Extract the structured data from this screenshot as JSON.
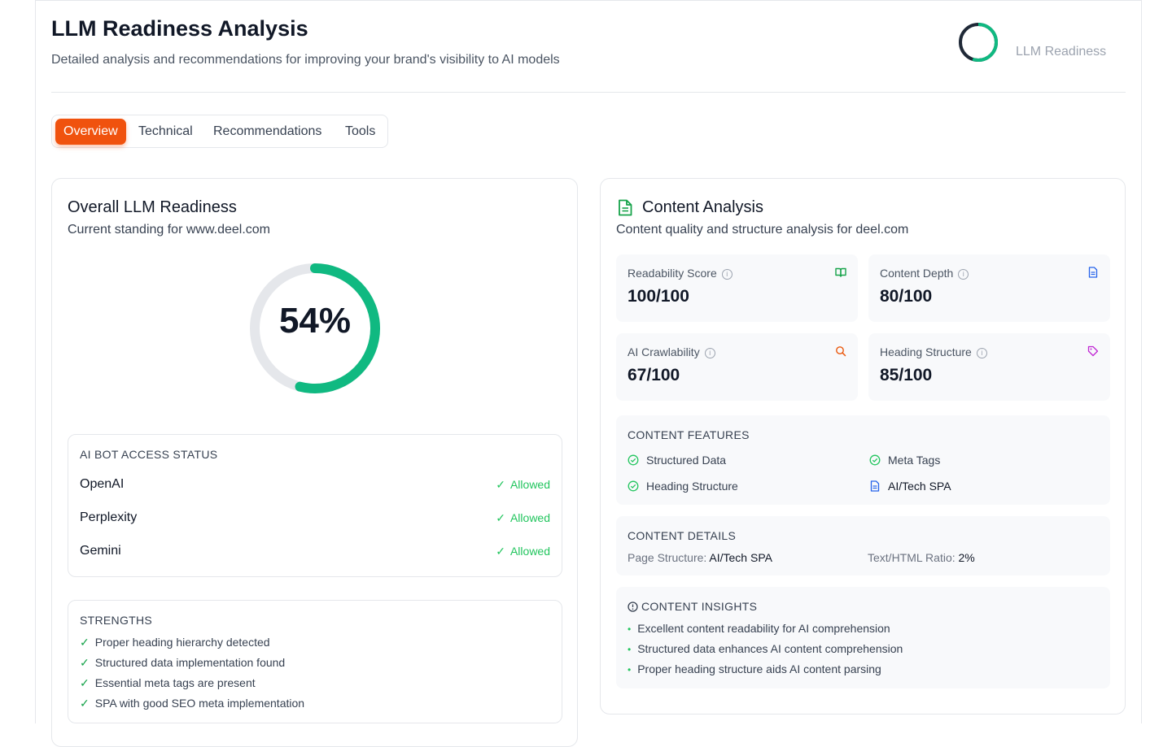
{
  "header": {
    "title": "LLM Readiness Analysis",
    "subtitle": "Detailed analysis and recommendations for improving your brand's visibility to AI models",
    "ring_label": "LLM Readiness"
  },
  "tabs": [
    {
      "label": "Overview",
      "active": true
    },
    {
      "label": "Technical",
      "active": false
    },
    {
      "label": "Recommendations",
      "active": false
    },
    {
      "label": "Tools",
      "active": false
    }
  ],
  "overall": {
    "title": "Overall LLM Readiness",
    "subtitle": "Current standing for www.deel.com",
    "score_text": "54%",
    "score_fraction": 0.54,
    "bot_access": {
      "heading": "AI BOT ACCESS STATUS",
      "rows": [
        {
          "name": "OpenAI",
          "status": "Allowed"
        },
        {
          "name": "Perplexity",
          "status": "Allowed"
        },
        {
          "name": "Gemini",
          "status": "Allowed"
        }
      ]
    },
    "strengths": {
      "heading": "STRENGTHS",
      "items": [
        "Proper heading hierarchy detected",
        "Structured data implementation found",
        "Essential meta tags are present",
        "SPA with good SEO meta implementation"
      ]
    }
  },
  "content": {
    "title": "Content Analysis",
    "subtitle": "Content quality and structure analysis for deel.com",
    "metrics": [
      {
        "label": "Readability Score",
        "value": "100/100",
        "icon": "book-open-icon",
        "color": "#16a34a"
      },
      {
        "label": "Content Depth",
        "value": "80/100",
        "icon": "document-icon",
        "color": "#2563eb"
      },
      {
        "label": "AI Crawlability",
        "value": "67/100",
        "icon": "search-icon",
        "color": "#ea580c"
      },
      {
        "label": "Heading Structure",
        "value": "85/100",
        "icon": "tag-icon",
        "color": "#c026d3"
      }
    ],
    "features": {
      "heading": "CONTENT FEATURES",
      "items": [
        {
          "label": "Structured Data",
          "icon": "check-circle-icon"
        },
        {
          "label": "Meta Tags",
          "icon": "check-circle-icon"
        },
        {
          "label": "Heading Structure",
          "icon": "check-circle-icon"
        },
        {
          "label": "AI/Tech SPA",
          "icon": "document-icon"
        }
      ]
    },
    "details": {
      "heading": "CONTENT DETAILS",
      "page_structure_label": "Page Structure:",
      "page_structure_value": "AI/Tech SPA",
      "ratio_label": "Text/HTML Ratio:",
      "ratio_value": "2%"
    },
    "insights": {
      "heading": "CONTENT INSIGHTS",
      "items": [
        "Excellent content readability for AI comprehension",
        "Structured data enhances AI content comprehension",
        "Proper heading structure aids AI content parsing"
      ]
    }
  },
  "colors": {
    "accent": "#f0520e",
    "success": "#22c55e",
    "ring": "#10b981"
  }
}
